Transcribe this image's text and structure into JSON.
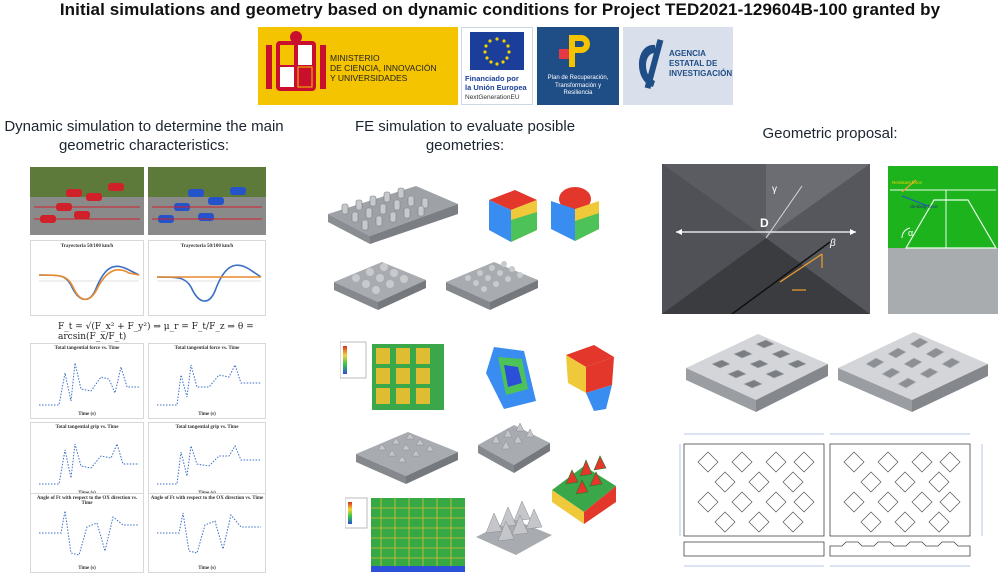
{
  "title": "Initial simulations and geometry based on dynamic conditions for Project TED2021-129604B-100 granted by",
  "logos": {
    "ministerio": "MINISTERIO\nDE CIENCIA, INNOVACIÓN\nY UNIVERSIDADES",
    "eu_line1": "Financiado por",
    "eu_line2": "la Unión Europea",
    "eu_line3": "NextGenerationEU",
    "prtr": "Plan de Recuperación,\nTransformación y\nResiliencia",
    "agencia": "AGENCIA\nESTATAL DE\nINVESTIGACIÓN"
  },
  "columns": {
    "dynamic": "Dynamic simulation to determine the main geometric characteristics:",
    "fe": "FE simulation to evaluate posible geometries:",
    "geometric": "Geometric proposal:"
  },
  "dynamic": {
    "trajectory_title": "Trayectoria 50/100 km/h",
    "formula": "F_t = √(F_x² + F_y²) ⇒ μ_r = F_t/F_z ⇒ θ = arcsin(F_x/F_t)",
    "graph_titles": [
      "Total tangential force vs. Time",
      "Total tangential force vs. Time",
      "Total tangential grip vs. Time",
      "Total tangential grip vs. Time",
      "Angle of Ft with respect to the OX direction vs. Time",
      "Angle of Ft with respect to the OX direction vs. Time"
    ],
    "xlabel": "Time (s)"
  },
  "geometric": {
    "label_d": "D",
    "label_gamma": "γ",
    "label_beta": "β",
    "label_alpha": "α",
    "label_resistant": "Resistant force",
    "label_climbing": "climbing force"
  },
  "colors": {
    "grass": "#5d7a3b",
    "road": "#8a8a8a",
    "car_red": "#d0202a",
    "car_blue": "#2553c9",
    "curve_blue": "#3a6fc6",
    "curve_orange": "#e88a2e",
    "mesh_grey": "#b6b8bc",
    "field_green": "#1db31d"
  }
}
